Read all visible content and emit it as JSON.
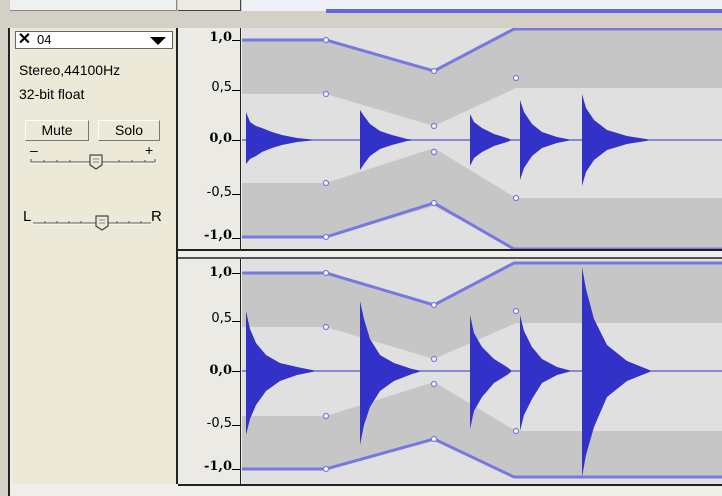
{
  "track": {
    "close_symbol": "✕",
    "name": "04",
    "format": "Stereo,44100Hz",
    "bit_depth": "32-bit float",
    "mute_label": "Mute",
    "solo_label": "Solo",
    "gain_minus": "–",
    "gain_plus": "+",
    "pan_left": "L",
    "pan_right": "R"
  },
  "ruler": {
    "top_channel": [
      "1,0",
      "0,5",
      "0,0",
      "-0,5",
      "-1,0"
    ],
    "bottom_channel": [
      "1,0",
      "0,5",
      "0,0",
      "-0,5",
      "-1,0"
    ]
  },
  "colors": {
    "waveform": "#3232c8",
    "envelope": "#7878e0",
    "background_light": "#e0e0e0",
    "background_dark": "#c4c4c4",
    "panel": "#ece9d8"
  },
  "icons": {
    "close": "close-icon",
    "dropdown": "triangle-down-icon",
    "gain_thumb": "slider-thumb-icon",
    "pan_thumb": "slider-thumb-icon"
  }
}
